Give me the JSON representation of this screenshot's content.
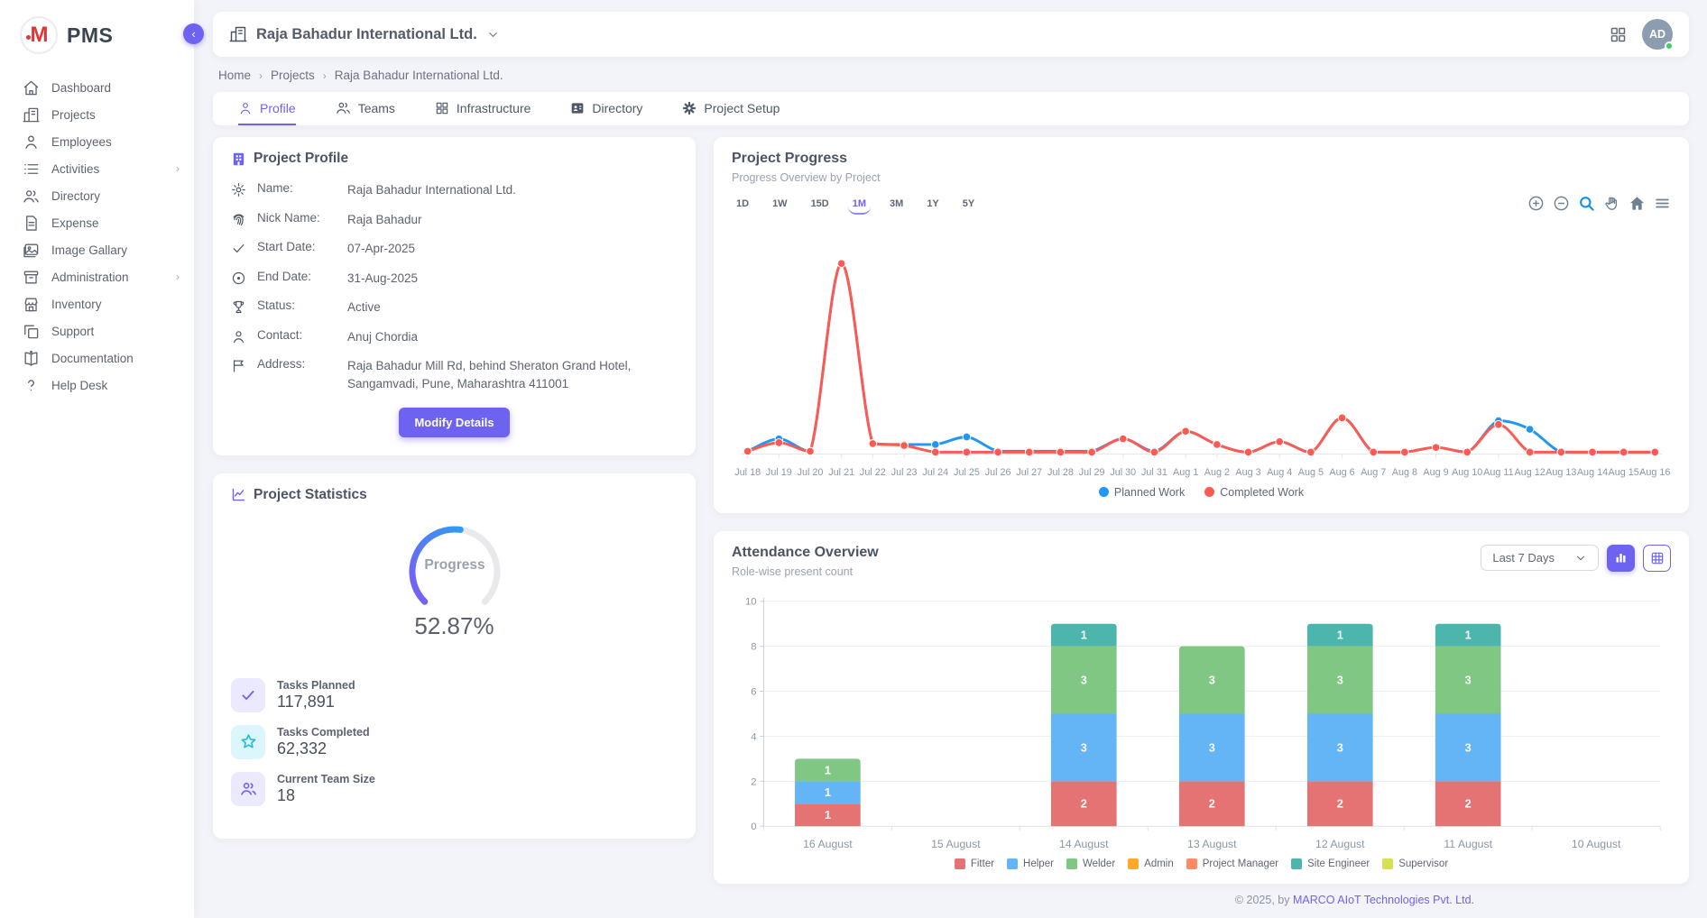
{
  "app": {
    "name": "PMS",
    "logo_letter": "M"
  },
  "sidebar": {
    "items": [
      {
        "label": "Dashboard"
      },
      {
        "label": "Projects"
      },
      {
        "label": "Employees"
      },
      {
        "label": "Activities",
        "has_submenu": true
      },
      {
        "label": "Directory"
      },
      {
        "label": "Expense"
      },
      {
        "label": "Image Gallary"
      },
      {
        "label": "Administration",
        "has_submenu": true
      },
      {
        "label": "Inventory"
      },
      {
        "label": "Support"
      },
      {
        "label": "Documentation"
      },
      {
        "label": "Help Desk"
      }
    ]
  },
  "topbar": {
    "company": "Raja Bahadur International Ltd.",
    "avatar_initials": "AD",
    "online_color": "#3fd066"
  },
  "breadcrumb": {
    "items": [
      "Home",
      "Projects",
      "Raja Bahadur International Ltd."
    ]
  },
  "tabs": {
    "items": [
      {
        "label": "Profile",
        "active": true
      },
      {
        "label": "Teams"
      },
      {
        "label": "Infrastructure"
      },
      {
        "label": "Directory"
      },
      {
        "label": "Project Setup"
      }
    ]
  },
  "profile_card": {
    "title": "Project Profile",
    "fields": [
      {
        "label": "Name:",
        "value": "Raja Bahadur International Ltd."
      },
      {
        "label": "Nick Name:",
        "value": "Raja Bahadur"
      },
      {
        "label": "Start Date:",
        "value": "07-Apr-2025"
      },
      {
        "label": "End Date:",
        "value": "31-Aug-2025"
      },
      {
        "label": "Status:",
        "value": "Active"
      },
      {
        "label": "Contact:",
        "value": "Anuj Chordia"
      },
      {
        "label": "Address:",
        "value": "Raja Bahadur Mill Rd, behind Sheraton Grand Hotel, Sangamvadi, Pune, Maharashtra 411001"
      }
    ],
    "button_label": "Modify Details"
  },
  "stats_card": {
    "title": "Project Statistics",
    "gauge": {
      "label": "Progress",
      "value": 52.87,
      "display": "52.87%",
      "start_color": "#7b5cf5",
      "end_color": "#2f9bf5",
      "track_color": "#e9e9ec"
    },
    "items": [
      {
        "label": "Tasks Planned",
        "value": "117,891",
        "icon": "check-icon"
      },
      {
        "label": "Tasks Completed",
        "value": "62,332",
        "icon": "star-icon"
      },
      {
        "label": "Current Team Size",
        "value": "18",
        "icon": "team-icon"
      }
    ]
  },
  "progress_card": {
    "title": "Project Progress",
    "subtitle": "Progress Overview by Project",
    "ranges": [
      {
        "label": "1D"
      },
      {
        "label": "1W"
      },
      {
        "label": "15D"
      },
      {
        "label": "1M",
        "active": true
      },
      {
        "label": "3M"
      },
      {
        "label": "1Y"
      },
      {
        "label": "5Y"
      }
    ],
    "toolbar": [
      "zoom-in",
      "zoom-out",
      "selection-zoom",
      "pan",
      "reset-home",
      "menu"
    ]
  },
  "attendance_card": {
    "title": "Attendance Overview",
    "subtitle": "Role-wise present count",
    "filter_value": "Last 7 Days",
    "views": [
      "chart",
      "table"
    ]
  },
  "footer": {
    "prefix": "© 2025, by ",
    "company": "MARCO AIoT Technologies Pvt. Ltd."
  },
  "chart_data": [
    {
      "id": "project_progress",
      "type": "line",
      "curve": "smooth",
      "x": [
        "Jul 18",
        "Jul 19",
        "Jul 20",
        "Jul 21",
        "Jul 22",
        "Jul 23",
        "Jul 24",
        "Jul 25",
        "Jul 26",
        "Jul 27",
        "Jul 28",
        "Jul 29",
        "Jul 30",
        "Jul 31",
        "Aug 1",
        "Aug 2",
        "Aug 3",
        "Aug 4",
        "Aug 5",
        "Aug 6",
        "Aug 7",
        "Aug 8",
        "Aug 9",
        "Aug 10",
        "Aug 11",
        "Aug 12",
        "Aug 13",
        "Aug 14",
        "Aug 15",
        "Aug 16"
      ],
      "series": [
        {
          "name": "Planned Work",
          "color": "#2196f3",
          "values": [
            0.15,
            0.8,
            0.15,
            10,
            0.55,
            0.5,
            0.5,
            0.9,
            0.15,
            0.15,
            0.15,
            0.15,
            0.8,
            0.15,
            1.2,
            0.5,
            0.1,
            0.65,
            0.1,
            1.9,
            0.1,
            0.1,
            0.35,
            0.1,
            1.75,
            1.3,
            0.1,
            0.1,
            0.1,
            0.1
          ]
        },
        {
          "name": "Completed Work",
          "color": "#ff5a52",
          "values": [
            0.15,
            0.6,
            0.15,
            10,
            0.55,
            0.45,
            0.1,
            0.1,
            0.1,
            0.1,
            0.1,
            0.1,
            0.8,
            0.1,
            1.2,
            0.5,
            0.1,
            0.65,
            0.1,
            1.9,
            0.1,
            0.1,
            0.35,
            0.1,
            1.55,
            0.1,
            0.1,
            0.1,
            0.1,
            0.1
          ]
        }
      ],
      "ylim": [
        0,
        10.5
      ],
      "y_axis_visible": false,
      "legend_position": "bottom"
    },
    {
      "id": "attendance_overview",
      "type": "bar",
      "stacked": true,
      "categories": [
        "16 August",
        "15 August",
        "14 August",
        "13 August",
        "12 August",
        "11 August",
        "10 August"
      ],
      "series": [
        {
          "name": "Fitter",
          "color": "#e57373",
          "values": [
            1,
            0,
            2,
            2,
            2,
            2,
            0
          ]
        },
        {
          "name": "Helper",
          "color": "#64b5f6",
          "values": [
            1,
            0,
            3,
            3,
            3,
            3,
            0
          ]
        },
        {
          "name": "Welder",
          "color": "#81c784",
          "values": [
            1,
            0,
            3,
            3,
            3,
            3,
            0
          ]
        },
        {
          "name": "Admin",
          "color": "#ffa726",
          "values": [
            0,
            0,
            0,
            0,
            0,
            0,
            0
          ]
        },
        {
          "name": "Project Manager",
          "color": "#ff8a65",
          "values": [
            0,
            0,
            0,
            0,
            0,
            0,
            0
          ]
        },
        {
          "name": "Site Engineer",
          "color": "#4db6ac",
          "values": [
            0,
            0,
            1,
            0,
            1,
            1,
            0
          ]
        },
        {
          "name": "Supervisor",
          "color": "#d4e157",
          "values": [
            0,
            0,
            0,
            0,
            0,
            0,
            0
          ]
        }
      ],
      "ylim": [
        0,
        10
      ],
      "yticks": [
        0,
        2,
        4,
        6,
        8,
        10
      ],
      "grid": true,
      "legend_position": "bottom"
    }
  ]
}
